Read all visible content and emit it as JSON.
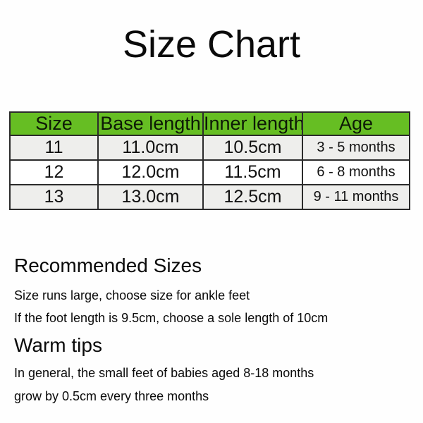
{
  "page_title": "Size Chart",
  "table": {
    "headers": [
      "Size",
      "Base length",
      "Inner length",
      "Age"
    ],
    "rows": [
      [
        "11",
        "11.0cm",
        "10.5cm",
        "3 - 5 months"
      ],
      [
        "12",
        "12.0cm",
        "11.5cm",
        "6 - 8 months"
      ],
      [
        "13",
        "13.0cm",
        "12.5cm",
        "9 - 11 months"
      ]
    ]
  },
  "sections": [
    {
      "heading": "Recommended Sizes",
      "lines": [
        "Size runs large, choose size for ankle feet",
        "If the foot length is 9.5cm, choose a sole length of 10cm"
      ]
    },
    {
      "heading": "Warm tips",
      "lines": [
        "In general, the small feet of babies aged 8-18 months",
        "grow by 0.5cm every three months"
      ]
    }
  ],
  "theme": {
    "header_bg": "#66be23",
    "alt_row_bg": "#eeeeec",
    "white_row_bg": "#ffffff",
    "border_color": "#2b2b2b",
    "text_color": "#111111",
    "page_bg": "#fefefe"
  }
}
